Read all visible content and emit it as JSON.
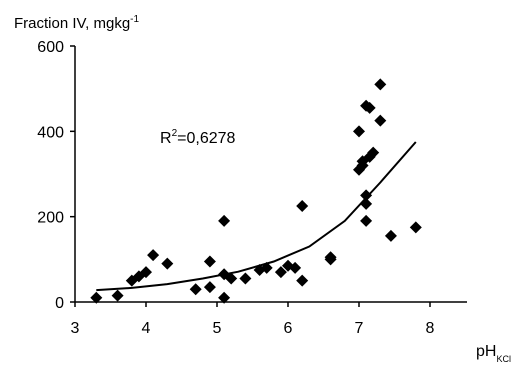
{
  "chart_data": {
    "type": "scatter",
    "title": "",
    "ylabel_main": "Fraction IV, mgkg",
    "ylabel_sup": "-1",
    "xlabel_main": "pH",
    "xlabel_sub": "KCl",
    "xlim": [
      3,
      8.5
    ],
    "ylim": [
      0,
      600
    ],
    "x_ticks": [
      3,
      4,
      5,
      6,
      7,
      8
    ],
    "y_ticks": [
      0,
      200,
      400,
      600
    ],
    "grid": false,
    "annotation_prefix": "R",
    "annotation_sup": "2",
    "annotation_value": "=0,6278",
    "series": [
      {
        "points": [
          {
            "x": 3.3,
            "y": 10
          },
          {
            "x": 3.6,
            "y": 15
          },
          {
            "x": 3.8,
            "y": 50
          },
          {
            "x": 3.9,
            "y": 60
          },
          {
            "x": 4.0,
            "y": 70
          },
          {
            "x": 4.1,
            "y": 110
          },
          {
            "x": 4.3,
            "y": 90
          },
          {
            "x": 4.7,
            "y": 30
          },
          {
            "x": 4.9,
            "y": 95
          },
          {
            "x": 4.9,
            "y": 35
          },
          {
            "x": 5.1,
            "y": 10
          },
          {
            "x": 5.1,
            "y": 65
          },
          {
            "x": 5.1,
            "y": 190
          },
          {
            "x": 5.2,
            "y": 55
          },
          {
            "x": 5.4,
            "y": 55
          },
          {
            "x": 5.6,
            "y": 75
          },
          {
            "x": 5.7,
            "y": 80
          },
          {
            "x": 5.9,
            "y": 70
          },
          {
            "x": 6.0,
            "y": 85
          },
          {
            "x": 6.1,
            "y": 80
          },
          {
            "x": 6.2,
            "y": 50
          },
          {
            "x": 6.2,
            "y": 225
          },
          {
            "x": 6.6,
            "y": 100
          },
          {
            "x": 6.6,
            "y": 105
          },
          {
            "x": 7.0,
            "y": 400
          },
          {
            "x": 7.0,
            "y": 310
          },
          {
            "x": 7.05,
            "y": 320
          },
          {
            "x": 7.05,
            "y": 330
          },
          {
            "x": 7.1,
            "y": 460
          },
          {
            "x": 7.1,
            "y": 250
          },
          {
            "x": 7.1,
            "y": 230
          },
          {
            "x": 7.1,
            "y": 190
          },
          {
            "x": 7.15,
            "y": 455
          },
          {
            "x": 7.15,
            "y": 340
          },
          {
            "x": 7.2,
            "y": 350
          },
          {
            "x": 7.3,
            "y": 510
          },
          {
            "x": 7.3,
            "y": 425
          },
          {
            "x": 7.45,
            "y": 155
          },
          {
            "x": 7.8,
            "y": 175
          }
        ]
      }
    ],
    "trendline": {
      "type": "exponential",
      "points": [
        {
          "x": 3.3,
          "y": 28
        },
        {
          "x": 3.8,
          "y": 33
        },
        {
          "x": 4.3,
          "y": 42
        },
        {
          "x": 4.8,
          "y": 55
        },
        {
          "x": 5.3,
          "y": 71
        },
        {
          "x": 5.8,
          "y": 95
        },
        {
          "x": 6.3,
          "y": 130
        },
        {
          "x": 6.8,
          "y": 190
        },
        {
          "x": 7.3,
          "y": 280
        },
        {
          "x": 7.8,
          "y": 375
        }
      ]
    }
  }
}
